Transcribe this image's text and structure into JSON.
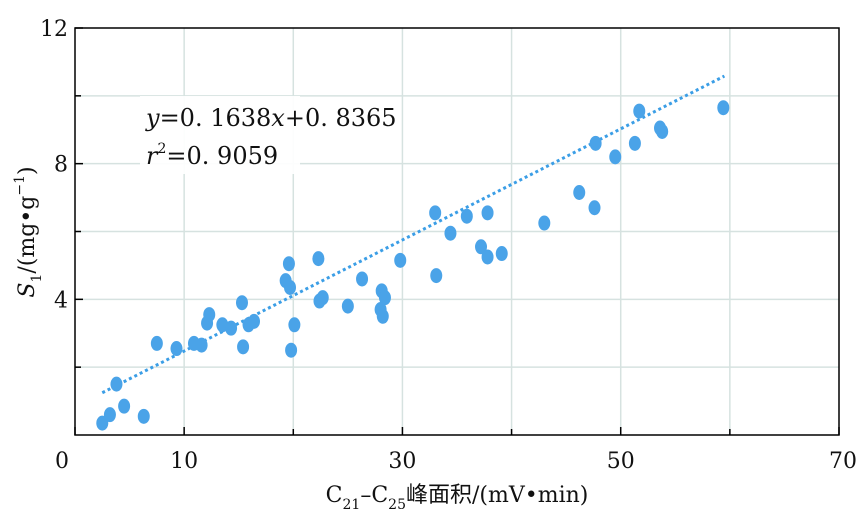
{
  "chart_data": {
    "type": "scatter",
    "xlim": [
      0,
      70
    ],
    "ylim": [
      0,
      12
    ],
    "x_ticks_labeled": [
      0,
      10,
      30,
      50,
      70
    ],
    "x_ticks_minor": [
      20,
      40,
      60
    ],
    "y_ticks_labeled": [
      4,
      8,
      12
    ],
    "y_ticks_minor": [
      2,
      6,
      10
    ],
    "grid": true,
    "xlabel": {
      "p1": "C",
      "s1": "21",
      "p2": "–C",
      "s2": "25",
      "p3": "峰面积/(mV•min)"
    },
    "ylabel": {
      "p1": "S",
      "s1": "1",
      "p2": "/(mg•g",
      "s2": "−1",
      "p3": ")"
    },
    "annotation": {
      "eq_var_y": "y",
      "eq_mid": "=0. 1638",
      "eq_var_x": "x",
      "eq_end": "+0. 8365",
      "r_var": "r",
      "r_sup": "2",
      "r_end": "=0. 9059"
    },
    "trendline": {
      "slope": 0.1638,
      "intercept": 0.8365,
      "x_start": 2.5,
      "x_end": 59.5
    },
    "marker_color": "#4aa3e8",
    "line_color": "#3b9ee6",
    "points": [
      [
        2.5,
        0.35
      ],
      [
        3.2,
        0.6
      ],
      [
        3.8,
        1.5
      ],
      [
        4.5,
        0.85
      ],
      [
        6.3,
        0.55
      ],
      [
        7.5,
        2.7
      ],
      [
        9.3,
        2.55
      ],
      [
        10.9,
        2.7
      ],
      [
        11.6,
        2.65
      ],
      [
        12.1,
        3.3
      ],
      [
        12.3,
        3.55
      ],
      [
        13.5,
        3.25
      ],
      [
        14.3,
        3.15
      ],
      [
        15.3,
        3.9
      ],
      [
        15.4,
        2.6
      ],
      [
        15.9,
        3.25
      ],
      [
        16.4,
        3.35
      ],
      [
        19.3,
        4.55
      ],
      [
        19.7,
        4.35
      ],
      [
        19.6,
        5.05
      ],
      [
        19.8,
        2.5
      ],
      [
        20.1,
        3.25
      ],
      [
        22.3,
        5.2
      ],
      [
        22.4,
        3.95
      ],
      [
        22.7,
        4.05
      ],
      [
        25.0,
        3.8
      ],
      [
        26.3,
        4.6
      ],
      [
        28.0,
        3.7
      ],
      [
        28.1,
        4.25
      ],
      [
        28.2,
        3.5
      ],
      [
        28.4,
        4.05
      ],
      [
        29.8,
        5.15
      ],
      [
        33.0,
        6.55
      ],
      [
        33.1,
        4.7
      ],
      [
        34.4,
        5.95
      ],
      [
        35.9,
        6.45
      ],
      [
        37.2,
        5.55
      ],
      [
        37.8,
        5.25
      ],
      [
        37.8,
        6.55
      ],
      [
        39.1,
        5.35
      ],
      [
        43.0,
        6.25
      ],
      [
        46.2,
        7.15
      ],
      [
        47.6,
        6.7
      ],
      [
        47.7,
        8.6
      ],
      [
        49.5,
        8.2
      ],
      [
        51.3,
        8.6
      ],
      [
        51.7,
        9.55
      ],
      [
        53.6,
        9.05
      ],
      [
        53.8,
        8.95
      ],
      [
        59.4,
        9.65
      ]
    ]
  }
}
